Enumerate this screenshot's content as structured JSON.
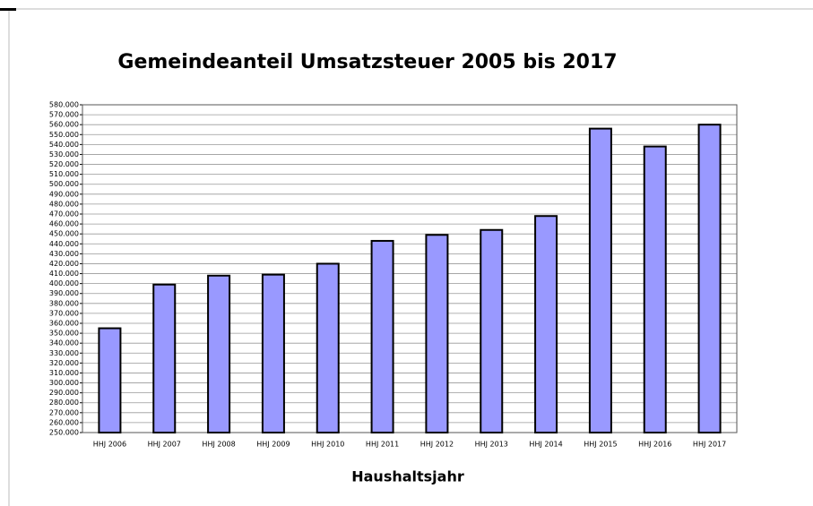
{
  "chart_data": {
    "type": "bar",
    "title": "Gemeindeanteil Umsatzsteuer 2005 bis 2017",
    "x_label": "Haushaltsjahr",
    "categories": [
      "HHJ 2006",
      "HHJ 2007",
      "HHJ 2008",
      "HHJ 2009",
      "HHJ 2010",
      "HHJ 2011",
      "HHJ 2012",
      "HHJ 2013",
      "HHJ 2014",
      "HHJ 2015",
      "HHJ 2016",
      "HHJ 2017"
    ],
    "values": [
      355000,
      399000,
      408000,
      409000,
      420000,
      443000,
      449000,
      454000,
      468000,
      556000,
      538000,
      560000
    ],
    "color": "#9999ff",
    "grid": true,
    "ylim": [
      250000,
      580000
    ],
    "yticks": [
      {
        "value": 250000,
        "label": "250.000"
      },
      {
        "value": 260000,
        "label": "260.000"
      },
      {
        "value": 270000,
        "label": "270.000"
      },
      {
        "value": 280000,
        "label": "280.000"
      },
      {
        "value": 290000,
        "label": "290.000"
      },
      {
        "value": 300000,
        "label": "300.000"
      },
      {
        "value": 310000,
        "label": "310.000"
      },
      {
        "value": 320000,
        "label": "320.000"
      },
      {
        "value": 330000,
        "label": "330.000"
      },
      {
        "value": 340000,
        "label": "340.000"
      },
      {
        "value": 350000,
        "label": "350.000"
      },
      {
        "value": 360000,
        "label": "360.000"
      },
      {
        "value": 370000,
        "label": "370.000"
      },
      {
        "value": 380000,
        "label": "380.000"
      },
      {
        "value": 390000,
        "label": "390.000"
      },
      {
        "value": 400000,
        "label": "400.000"
      },
      {
        "value": 410000,
        "label": "410.000"
      },
      {
        "value": 420000,
        "label": "420.000"
      },
      {
        "value": 430000,
        "label": "430.000"
      },
      {
        "value": 440000,
        "label": "440.000"
      },
      {
        "value": 450000,
        "label": "450.000"
      },
      {
        "value": 460000,
        "label": "460.000"
      },
      {
        "value": 470000,
        "label": "470.000"
      },
      {
        "value": 480000,
        "label": "480.000"
      },
      {
        "value": 490000,
        "label": "490.000"
      },
      {
        "value": 500000,
        "label": "500.000"
      },
      {
        "value": 510000,
        "label": "510.000"
      },
      {
        "value": 520000,
        "label": "520.000"
      },
      {
        "value": 530000,
        "label": "530.000"
      },
      {
        "value": 540000,
        "label": "540.000"
      },
      {
        "value": 550000,
        "label": "550.000"
      },
      {
        "value": 560000,
        "label": "560.000"
      },
      {
        "value": 570000,
        "label": "570.000"
      },
      {
        "value": 580000,
        "label": "580.000"
      }
    ]
  }
}
